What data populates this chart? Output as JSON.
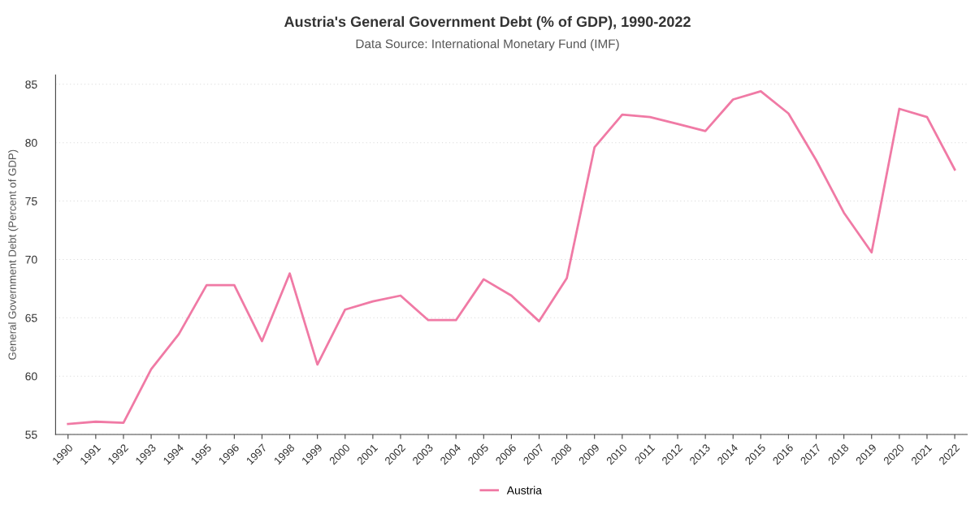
{
  "chart_data": {
    "type": "line",
    "title": "Austria's General Government Debt (% of GDP), 1990-2022",
    "subtitle": "Data Source: International Monetary Fund (IMF)",
    "ylabel": "General Government Debt (Percent of GDP)",
    "categories": [
      "1990",
      "1991",
      "1992",
      "1993",
      "1994",
      "1995",
      "1996",
      "1997",
      "1998",
      "1999",
      "2000",
      "2001",
      "2002",
      "2003",
      "2004",
      "2005",
      "2006",
      "2007",
      "2008",
      "2009",
      "2010",
      "2011",
      "2012",
      "2013",
      "2014",
      "2015",
      "2016",
      "2017",
      "2018",
      "2019",
      "2020",
      "2021",
      "2022"
    ],
    "series": [
      {
        "name": "Austria",
        "color": "#f07aa5",
        "values": [
          55.9,
          56.1,
          56.0,
          60.6,
          63.6,
          67.8,
          67.8,
          63.0,
          68.8,
          61.0,
          65.7,
          66.4,
          66.9,
          64.8,
          64.8,
          68.3,
          66.9,
          64.7,
          68.4,
          79.6,
          82.4,
          82.2,
          81.6,
          81.0,
          83.7,
          84.4,
          82.5,
          78.5,
          74.0,
          70.6,
          82.9,
          82.2,
          77.7
        ]
      }
    ],
    "ylim": [
      55,
      85.8
    ],
    "yticks": [
      55,
      60,
      65,
      70,
      75,
      80,
      85
    ],
    "grid": "y",
    "legend": "bottom",
    "marker": "none",
    "line_style": "solid"
  }
}
